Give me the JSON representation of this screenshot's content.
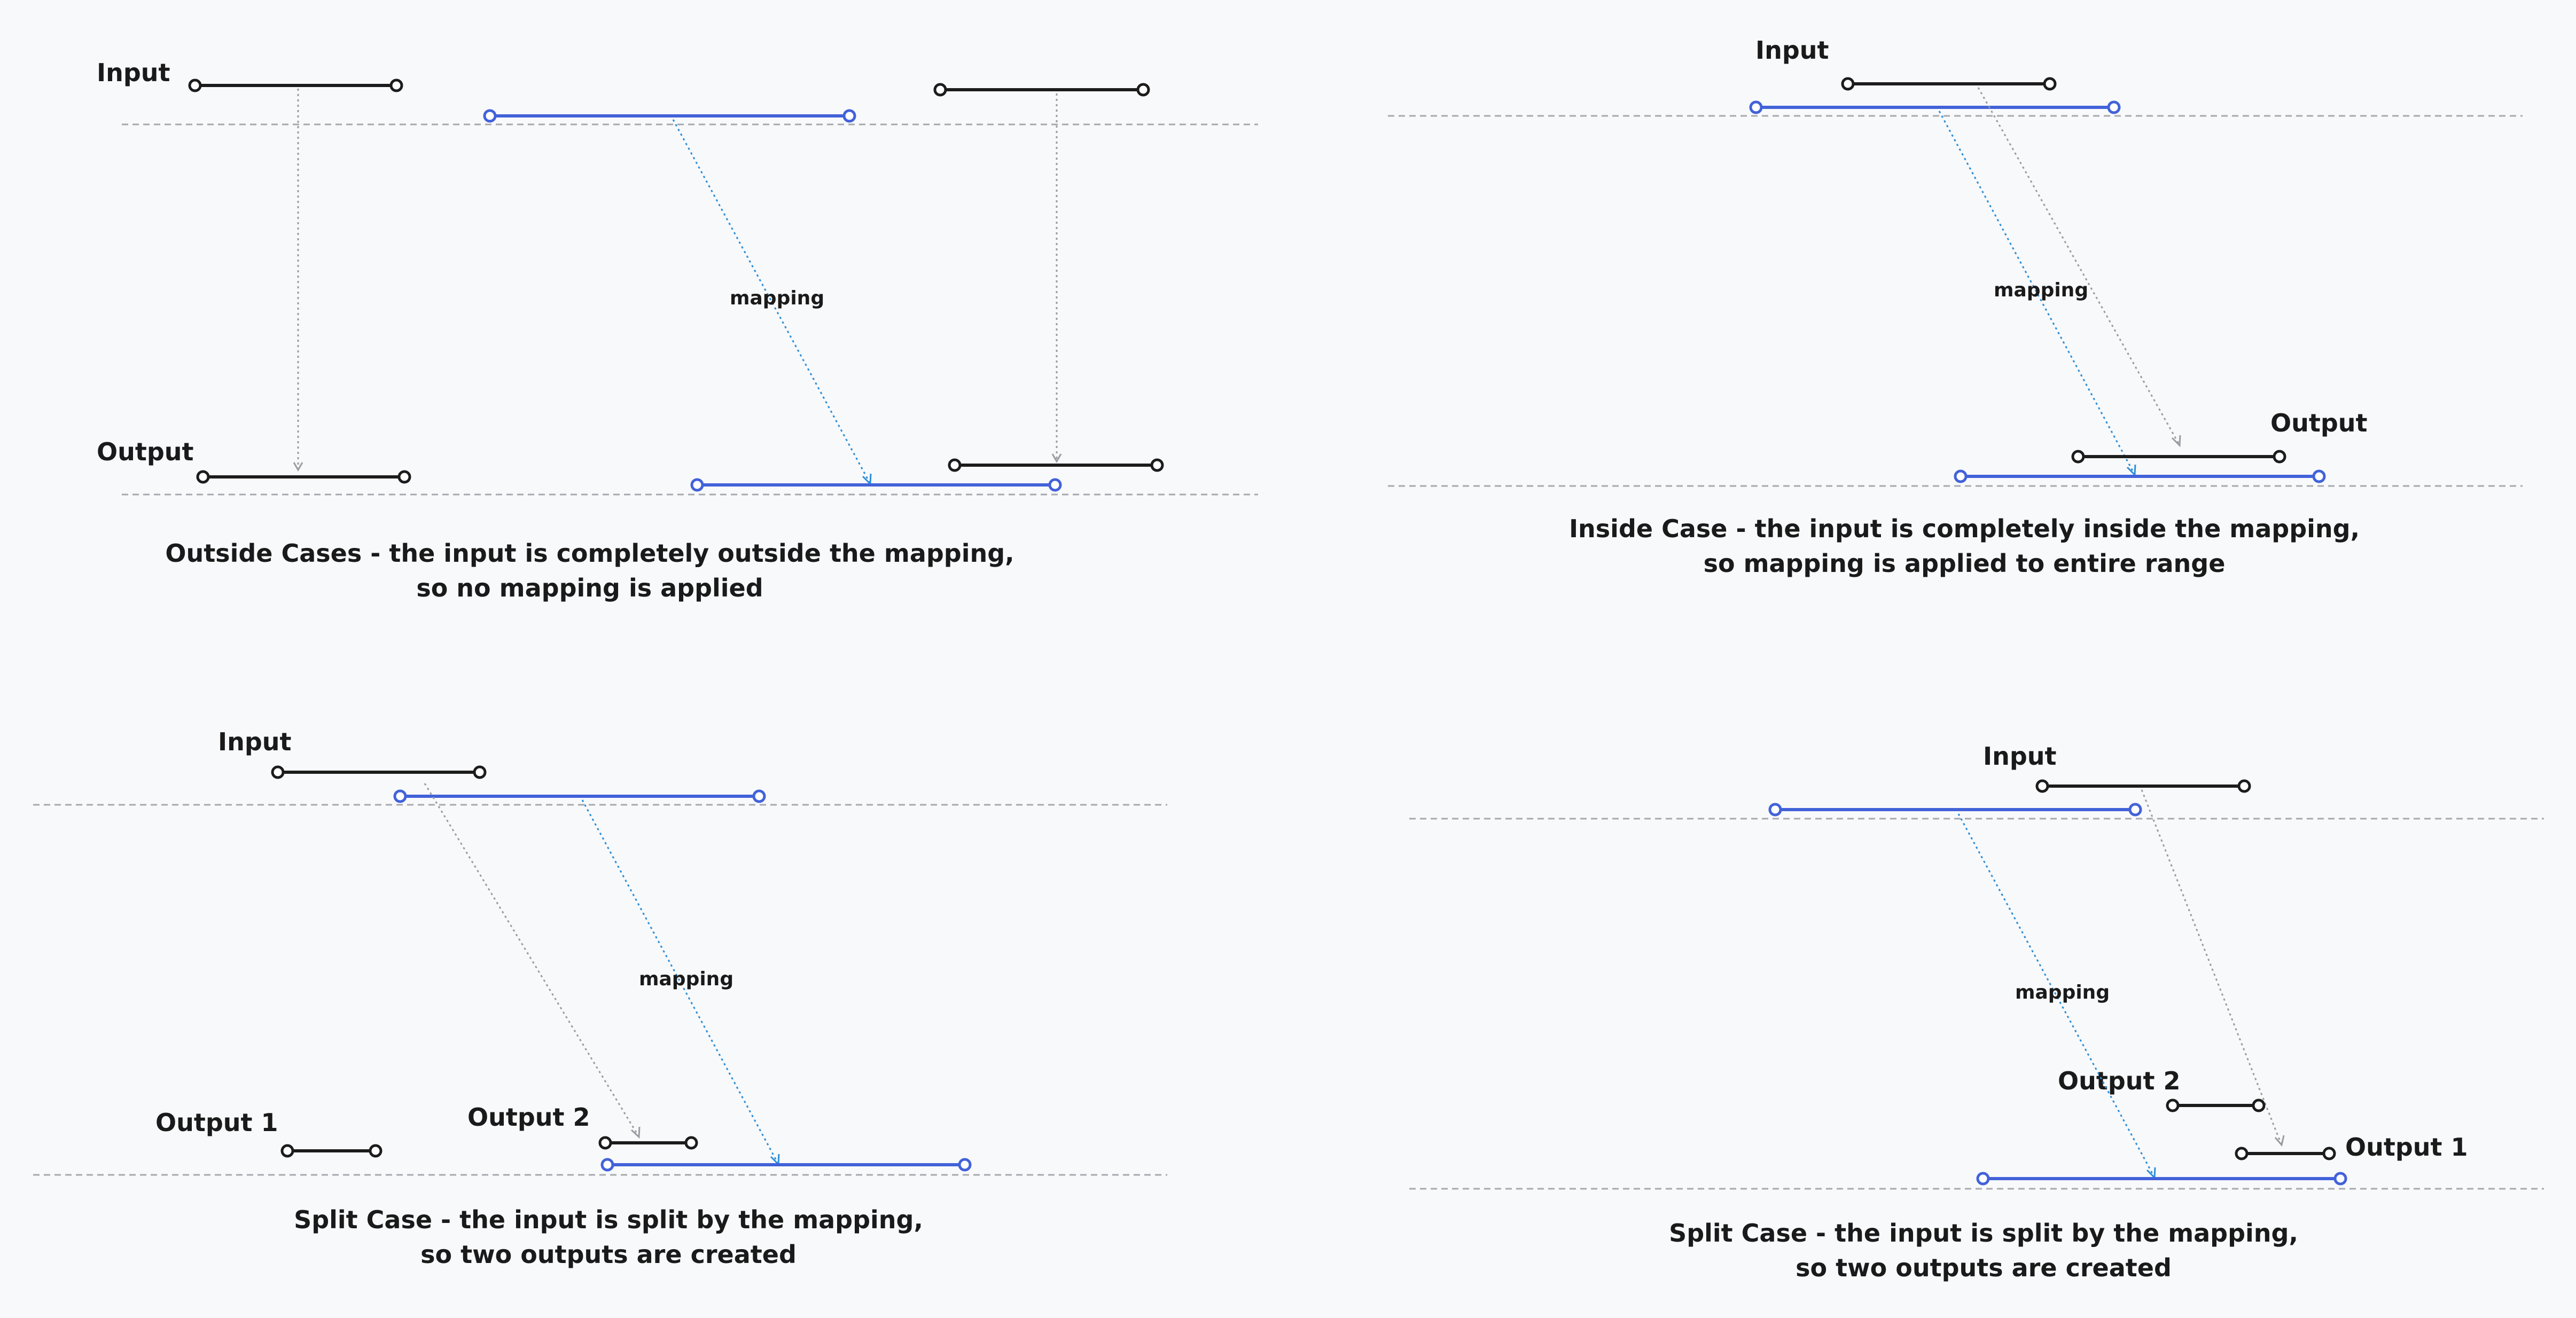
{
  "palette": {
    "background": "#f8f9fb",
    "input_segment": "#1c1c1c",
    "mapping_segment": "#4262d9",
    "mapping_arrow": "#2d8fd8",
    "passthrough_arrow": "#9a9ca1",
    "baseline": "#a7a9ae"
  },
  "panels": {
    "outside": {
      "input_label": "Input",
      "output_label": "Output",
      "mapping_label": "mapping",
      "caption_line1": "Outside Cases - the input is completely outside the mapping,",
      "caption_line2": "so no mapping is applied"
    },
    "inside": {
      "input_label": "Input",
      "output_label": "Output",
      "mapping_label": "mapping",
      "caption_line1": "Inside Case - the input is completely inside the mapping,",
      "caption_line2": "so mapping is applied to entire range"
    },
    "split_left": {
      "input_label": "Input",
      "output1_label": "Output 1",
      "output2_label": "Output 2",
      "mapping_label": "mapping",
      "caption_line1": "Split Case - the input is split by the mapping,",
      "caption_line2": "so two outputs are created"
    },
    "split_right": {
      "input_label": "Input",
      "output1_label": "Output 1",
      "output2_label": "Output 2",
      "mapping_label": "mapping",
      "caption_line1": "Split Case - the input is split by the mapping,",
      "caption_line2": "so two outputs are created"
    }
  }
}
